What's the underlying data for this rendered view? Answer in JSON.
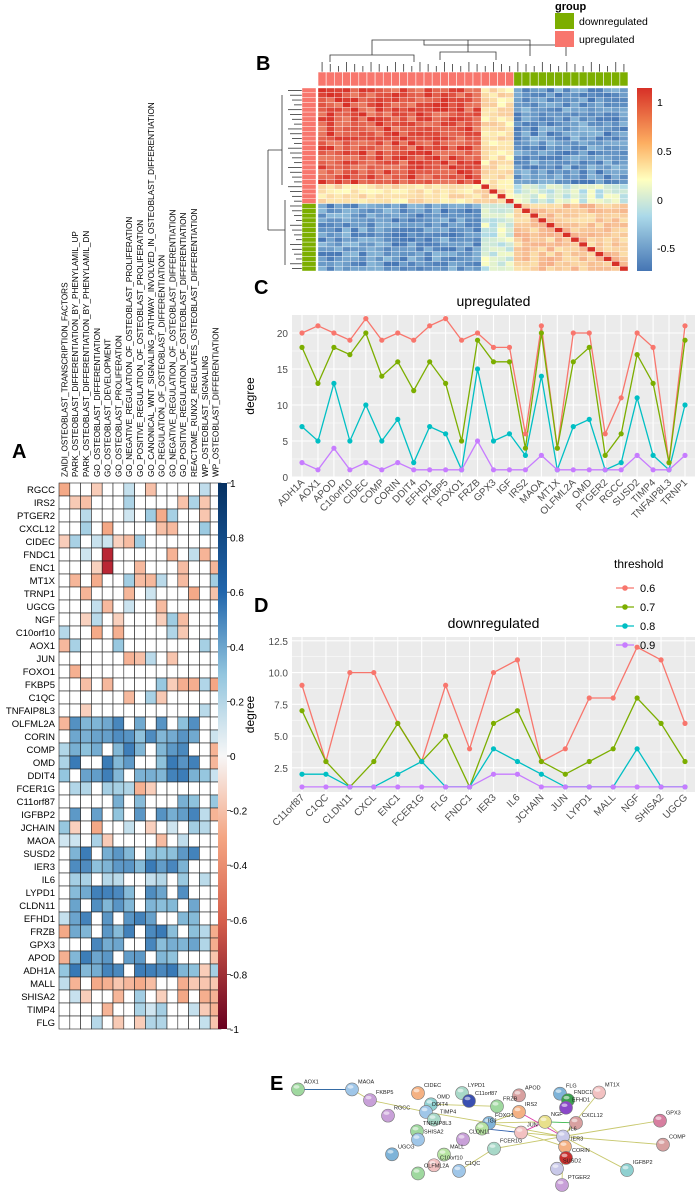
{
  "panels": {
    "A": "A",
    "B": "B",
    "C": "C",
    "D": "D",
    "E": "E"
  },
  "colors": {
    "up": "#F8766D",
    "down": "#7CAE00",
    "t06": "#F8766D",
    "t07": "#7CAE00",
    "t08": "#00BFC4",
    "t09": "#C77CFF",
    "panel_bg": "#EBEBEB",
    "grid": "#FFFFFF"
  },
  "panelA": {
    "row_labels": [
      "RGCC",
      "IRS2",
      "PTGER2",
      "CXCL12",
      "CIDEC",
      "FNDC1",
      "ENC1",
      "MT1X",
      "TRNP1",
      "UGCG",
      "NGF",
      "C10orf10",
      "AOX1",
      "JUN",
      "FOXO1",
      "FKBP5",
      "C1QC",
      "TNFAIP8L3",
      "OLFML2A",
      "CORIN",
      "COMP",
      "OMD",
      "DDIT4",
      "FCER1G",
      "C11orf87",
      "IGFBP2",
      "JCHAIN",
      "MAOA",
      "SUSD2",
      "IER3",
      "IL6",
      "LYPD1",
      "CLDN11",
      "EFHD1",
      "FRZB",
      "GPX3",
      "APOD",
      "ADH1A",
      "MALL",
      "SHISA2",
      "TIMP4",
      "FLG"
    ],
    "col_labels": [
      "ZAIDI_OSTEOBLAST_TRANSCRIPTION_FACTORS",
      "PARK_OSTEOBLAST_DIFFERENTIATION_BY_PHENYLAMIL_UP",
      "PARK_OSTEOBLAST_DIFFERENTIATION_BY_PHENYLAMIL_DN",
      "GO_OSTEOBLAST_DIFFERENTIATION",
      "GO_OSTEOBLAST_DEVELOPMENT",
      "GO_OSTEOBLAST_PROLIFERATION",
      "GO_NEGATIVE_REGULATION_OF_OSTEOBLAST_PROLIFERATION",
      "GO_POSITIVE_REGULATION_OF_OSTEOBLAST_PROLIFERATION",
      "GO_CANONICAL_WNT_SIGNALING_PATHWAY_INVOLVED_IN_OSTEOBLAST_DIFFERENTIATION",
      "GO_REGULATION_OF_OSTEOBLAST_DIFFERENTIATION",
      "GO_NEGATIVE_REGULATION_OF_OSTEOBLAST_DIFFERENTIATION",
      "GO_POSITIVE_REGULATION_OF_OSTEOBLAST_DIFFERENTIATION",
      "REACTOME_RUNX2_REGULATES_OSTEOBLAST_DIFFERENTIATION",
      "WP_OSTEOBLAST_SIGNALING",
      "WP_OSTEOBLAST_DIFFERENTIATION"
    ],
    "scale_labels": [
      "1",
      "0.8",
      "0.6",
      "0.4",
      "0.2",
      "0",
      "-0.2",
      "-0.4",
      "-0.6",
      "-0.8",
      "-1"
    ]
  },
  "panelB": {
    "legend_title": "group",
    "legend_items": [
      "downregulated",
      "upregulated"
    ],
    "scale_labels": [
      "1",
      "0.5",
      "0",
      "-0.5"
    ]
  },
  "panelC": {
    "chart_data": {
      "type": "line",
      "title": "upregulated",
      "xlabel": "",
      "ylabel": "degree",
      "ylim": [
        0,
        22.5
      ],
      "yticks": [
        "0",
        "5",
        "10",
        "15",
        "20"
      ],
      "categories": [
        "ADH1A",
        "AOX1",
        "APOD",
        "C10orf10",
        "CIDEC",
        "COMP",
        "CORIN",
        "DDIT4",
        "EFHD1",
        "FKBP5",
        "FOXO1",
        "FRZB",
        "GPX3",
        "IGF",
        "IRS2",
        "MAOA",
        "MT1X",
        "OLFML2A",
        "OMD",
        "PTGER2",
        "RGCC",
        "SUSD2",
        "TIMP4",
        "TNFAIP8L3",
        "TRNP1"
      ],
      "series": [
        {
          "name": "0.6",
          "values": [
            20,
            21,
            20,
            19,
            22,
            19,
            20,
            19,
            21,
            22,
            19,
            20,
            18,
            18,
            6,
            21,
            4,
            20,
            20,
            6,
            11,
            20,
            18,
            2,
            21
          ]
        },
        {
          "name": "0.7",
          "values": [
            18,
            13,
            18,
            17,
            20,
            14,
            16,
            12,
            16,
            13,
            5,
            19,
            16,
            16,
            4,
            20,
            4,
            16,
            18,
            3,
            6,
            17,
            13,
            2,
            19
          ]
        },
        {
          "name": "0.8",
          "values": [
            7,
            5,
            13,
            5,
            10,
            5,
            8,
            2,
            7,
            6,
            1,
            15,
            5,
            6,
            3,
            14,
            1,
            7,
            8,
            1,
            2,
            11,
            3,
            1,
            10
          ]
        },
        {
          "name": "0.9",
          "values": [
            2,
            1,
            4,
            1,
            2,
            1,
            2,
            1,
            1,
            1,
            1,
            5,
            1,
            1,
            1,
            3,
            1,
            1,
            1,
            1,
            1,
            3,
            1,
            1,
            3
          ]
        }
      ]
    }
  },
  "panelD": {
    "chart_data": {
      "type": "line",
      "title": "downregulated",
      "xlabel": "",
      "ylabel": "degree",
      "ylim": [
        0.6,
        12.8
      ],
      "yticks": [
        "2.5",
        "5.0",
        "7.5",
        "10.0",
        "12.5"
      ],
      "categories": [
        "C11orf87",
        "C1QC",
        "CLDN11",
        "CXCL",
        "ENC1",
        "FCER1G",
        "FLG",
        "FNDC1",
        "IER3",
        "IL6",
        "JCHAIN",
        "JUN",
        "LYPD1",
        "MALL",
        "NGF",
        "SHISA2",
        "UGCG"
      ],
      "series": [
        {
          "name": "0.6",
          "values": [
            9,
            3,
            10,
            10,
            6,
            3,
            9,
            4,
            10,
            11,
            3,
            4,
            8,
            8,
            12,
            11,
            6
          ]
        },
        {
          "name": "0.7",
          "values": [
            7,
            3,
            1,
            3,
            6,
            3,
            5,
            1,
            6,
            7,
            3,
            2,
            3,
            4,
            8,
            6,
            3
          ]
        },
        {
          "name": "0.8",
          "values": [
            2,
            2,
            1,
            1,
            2,
            3,
            1,
            1,
            4,
            3,
            2,
            1,
            1,
            1,
            4,
            1,
            1
          ]
        },
        {
          "name": "0.9",
          "values": [
            1,
            1,
            1,
            1,
            1,
            1,
            1,
            1,
            2,
            2,
            1,
            1,
            1,
            1,
            1,
            1,
            1
          ]
        }
      ]
    }
  },
  "legend": {
    "title": "threshold",
    "items": [
      "0.6",
      "0.7",
      "0.8",
      "0.9"
    ]
  },
  "panelE": {
    "nodes": [
      "AOX1",
      "MAOA",
      "FKBP5",
      "CIDEC",
      "LYPD1",
      "C11orf87",
      "APOD",
      "FLG",
      "FNDC1",
      "MT1X",
      "EFHD1",
      "OMD",
      "FRZB",
      "DDIT4",
      "RGCC",
      "IRS2",
      "TIMP4",
      "NGF",
      "CXCL12",
      "FOXO1",
      "IGJ",
      "JUN",
      "IL6",
      "GPX3",
      "TNFAIP8L3",
      "SHISA2",
      "CLDN11",
      "IER3",
      "FCER1G",
      "CORIN",
      "COMP",
      "UGCG",
      "MALL",
      "C10orf10",
      "SUSD2",
      "IGFBP2",
      "OLFML2A",
      "C1QC",
      "PTGER2"
    ]
  }
}
